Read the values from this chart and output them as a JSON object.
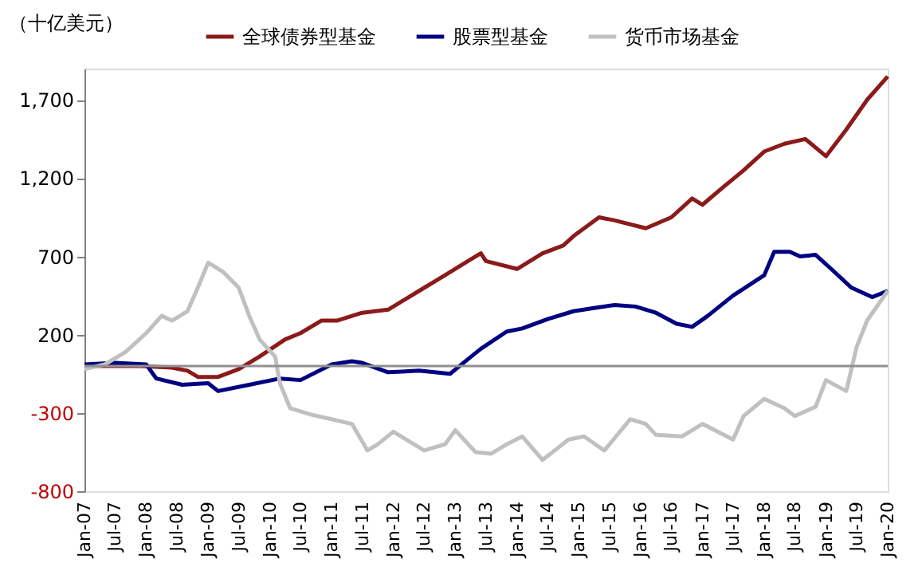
{
  "chart_data": {
    "type": "line",
    "ylabel": "（十亿美元）",
    "legend": "top",
    "grid": false,
    "line_style": "solid",
    "marker": "none",
    "xlim": [
      "2007-01",
      "2020-01"
    ],
    "ylim": [
      -800,
      1900
    ],
    "yticks": [
      {
        "value": -800,
        "label": "-800"
      },
      {
        "value": -300,
        "label": "-300"
      },
      {
        "value": 200,
        "label": "200"
      },
      {
        "value": 700,
        "label": "700"
      },
      {
        "value": 1200,
        "label": "1,200"
      },
      {
        "value": 1700,
        "label": "1,700"
      }
    ],
    "xticks": [
      {
        "value": "2007-01",
        "label": "Jan-07"
      },
      {
        "value": "2007-07",
        "label": "Jul-07"
      },
      {
        "value": "2008-01",
        "label": "Jan-08"
      },
      {
        "value": "2008-07",
        "label": "Jul-08"
      },
      {
        "value": "2009-01",
        "label": "Jan-09"
      },
      {
        "value": "2009-07",
        "label": "Jul-09"
      },
      {
        "value": "2010-01",
        "label": "Jan-10"
      },
      {
        "value": "2010-07",
        "label": "Jul-10"
      },
      {
        "value": "2011-01",
        "label": "Jan-11"
      },
      {
        "value": "2011-07",
        "label": "Jul-11"
      },
      {
        "value": "2012-01",
        "label": "Jan-12"
      },
      {
        "value": "2012-07",
        "label": "Jul-12"
      },
      {
        "value": "2013-01",
        "label": "Jan-13"
      },
      {
        "value": "2013-07",
        "label": "Jul-13"
      },
      {
        "value": "2014-01",
        "label": "Jan-14"
      },
      {
        "value": "2014-07",
        "label": "Jul-14"
      },
      {
        "value": "2015-01",
        "label": "Jan-15"
      },
      {
        "value": "2015-07",
        "label": "Jul-15"
      },
      {
        "value": "2016-01",
        "label": "Jan-16"
      },
      {
        "value": "2016-07",
        "label": "Jul-16"
      },
      {
        "value": "2017-01",
        "label": "Jan-17"
      },
      {
        "value": "2017-07",
        "label": "Jul-17"
      },
      {
        "value": "2018-01",
        "label": "Jan-18"
      },
      {
        "value": "2018-07",
        "label": "Jul-18"
      },
      {
        "value": "2019-01",
        "label": "Jan-19"
      },
      {
        "value": "2019-07",
        "label": "Jul-19"
      },
      {
        "value": "2020-01",
        "label": "Jan-20"
      }
    ],
    "ref_lines": [
      {
        "axis": "y",
        "value": 0,
        "label": null,
        "color": "#909090"
      }
    ],
    "series": [
      {
        "name": "全球债券型基金",
        "color": "#8b1a1a",
        "x": [
          "2007-01",
          "2007-12",
          "2008-06",
          "2008-09",
          "2008-11",
          "2009-03",
          "2009-07",
          "2009-11",
          "2010-04",
          "2010-07",
          "2010-11",
          "2011-02",
          "2011-07",
          "2011-12",
          "2012-06",
          "2012-11",
          "2013-04",
          "2013-06",
          "2013-07",
          "2014-01",
          "2014-06",
          "2014-10",
          "2014-12",
          "2015-05",
          "2015-08",
          "2016-02",
          "2016-07",
          "2016-11",
          "2017-01",
          "2017-05",
          "2017-09",
          "2018-01",
          "2018-05",
          "2018-09",
          "2019-01",
          "2019-05",
          "2019-09",
          "2020-01"
        ],
        "values": [
          0,
          0,
          -10,
          -30,
          -70,
          -70,
          -20,
          60,
          170,
          210,
          290,
          290,
          340,
          360,
          480,
          580,
          680,
          720,
          670,
          620,
          720,
          770,
          830,
          950,
          930,
          880,
          950,
          1070,
          1030,
          1140,
          1250,
          1370,
          1420,
          1450,
          1340,
          1510,
          1700,
          1850
        ]
      },
      {
        "name": "股票型基金",
        "color": "#000080",
        "x": [
          "2007-01",
          "2007-07",
          "2008-01",
          "2008-03",
          "2008-08",
          "2009-01",
          "2009-03",
          "2009-09",
          "2010-03",
          "2010-07",
          "2011-01",
          "2011-05",
          "2011-07",
          "2011-12",
          "2012-06",
          "2012-12",
          "2013-03",
          "2013-06",
          "2013-11",
          "2014-02",
          "2014-07",
          "2014-12",
          "2015-04",
          "2015-08",
          "2015-12",
          "2016-04",
          "2016-08",
          "2016-11",
          "2017-02",
          "2017-07",
          "2018-01",
          "2018-03",
          "2018-06",
          "2018-08",
          "2018-11",
          "2019-02",
          "2019-06",
          "2019-10",
          "2020-01"
        ],
        "values": [
          10,
          20,
          10,
          -80,
          -120,
          -110,
          -160,
          -120,
          -80,
          -90,
          10,
          30,
          20,
          -40,
          -30,
          -50,
          30,
          110,
          220,
          240,
          300,
          350,
          370,
          390,
          380,
          340,
          270,
          250,
          320,
          450,
          580,
          730,
          730,
          700,
          710,
          620,
          500,
          440,
          480
        ]
      },
      {
        "name": "货币市场基金",
        "color": "#c0c0c0",
        "x": [
          "2007-01",
          "2007-05",
          "2007-09",
          "2008-01",
          "2008-04",
          "2008-06",
          "2008-09",
          "2008-11",
          "2009-01",
          "2009-04",
          "2009-07",
          "2009-09",
          "2009-11",
          "2010-02",
          "2010-03",
          "2010-05",
          "2010-09",
          "2011-01",
          "2011-05",
          "2011-08",
          "2011-10",
          "2012-01",
          "2012-07",
          "2012-11",
          "2013-01",
          "2013-05",
          "2013-08",
          "2013-11",
          "2014-02",
          "2014-06",
          "2014-11",
          "2015-02",
          "2015-06",
          "2015-11",
          "2016-02",
          "2016-04",
          "2016-09",
          "2017-01",
          "2017-07",
          "2017-09",
          "2018-01",
          "2018-05",
          "2018-07",
          "2018-11",
          "2019-01",
          "2019-05",
          "2019-07",
          "2019-09",
          "2020-01"
        ],
        "values": [
          -20,
          10,
          90,
          210,
          320,
          290,
          350,
          500,
          660,
          600,
          500,
          320,
          170,
          60,
          -110,
          -270,
          -310,
          -340,
          -370,
          -540,
          -500,
          -420,
          -540,
          -500,
          -410,
          -550,
          -560,
          -500,
          -450,
          -600,
          -470,
          -450,
          -540,
          -340,
          -370,
          -440,
          -450,
          -370,
          -470,
          -320,
          -210,
          -270,
          -320,
          -260,
          -90,
          -160,
          120,
          290,
          480
        ]
      }
    ]
  }
}
